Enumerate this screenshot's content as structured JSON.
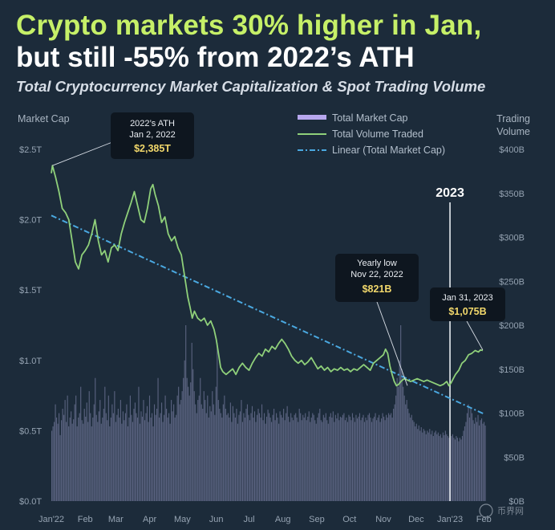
{
  "header": {
    "title_line1": "Crypto markets 30% higher in Jan,",
    "title_line2": "but still -55% from 2022’s ATH",
    "subtitle": "Total Cryptocurrency Market Capitalization & Spot Trading Volume"
  },
  "colors": {
    "background": "#1c2b3a",
    "market_cap_line": "#8fd07a",
    "volume_bars": "#8c8fb8",
    "linear_trend": "#4aa8e0",
    "legend_market_cap_swatch": "#b7a7ee",
    "title_accent": "#c6f068",
    "annotation_value": "#f1d76b"
  },
  "chart_data": {
    "type": "line",
    "left_axis_title": "Market Cap",
    "right_axis_title_line1": "Trading",
    "right_axis_title_line2": "Volume",
    "left_ticks": [
      "$0.0T",
      "$0.5T",
      "$1.0T",
      "$1.5T",
      "$2.0T",
      "$2.5T"
    ],
    "left_tick_values": [
      0,
      0.5,
      1.0,
      1.5,
      2.0,
      2.5
    ],
    "right_ticks": [
      "$0B",
      "$50B",
      "$100B",
      "$150B",
      "$200B",
      "$250B",
      "$300B",
      "$350B",
      "$400B"
    ],
    "right_tick_values": [
      0,
      50,
      100,
      150,
      200,
      250,
      300,
      350,
      400
    ],
    "ylim_left": [
      0,
      2.5
    ],
    "ylim_right": [
      0,
      400
    ],
    "xlim_days": [
      0,
      398
    ],
    "x_ticks": [
      "Jan'22",
      "Feb",
      "Mar",
      "Apr",
      "May",
      "Jun",
      "Jul",
      "Aug",
      "Sep",
      "Oct",
      "Nov",
      "Dec",
      "Jan'23",
      "Feb"
    ],
    "x_tick_days": [
      0,
      31,
      59,
      90,
      120,
      151,
      181,
      212,
      243,
      273,
      304,
      334,
      365,
      396
    ],
    "legend": [
      "Total Market Cap",
      "Total Volume Traded",
      "Linear (Total Market Cap)"
    ],
    "line_series": {
      "name": "Total Market Cap",
      "unit": "T USD",
      "points": [
        [
          0,
          2.33
        ],
        [
          1,
          2.385
        ],
        [
          4,
          2.3
        ],
        [
          7,
          2.2
        ],
        [
          10,
          2.08
        ],
        [
          13,
          2.05
        ],
        [
          16,
          2.0
        ],
        [
          19,
          1.85
        ],
        [
          22,
          1.7
        ],
        [
          25,
          1.65
        ],
        [
          28,
          1.75
        ],
        [
          31,
          1.78
        ],
        [
          34,
          1.82
        ],
        [
          37,
          1.9
        ],
        [
          40,
          2.0
        ],
        [
          43,
          1.85
        ],
        [
          46,
          1.75
        ],
        [
          49,
          1.78
        ],
        [
          52,
          1.7
        ],
        [
          55,
          1.8
        ],
        [
          58,
          1.82
        ],
        [
          61,
          1.78
        ],
        [
          64,
          1.9
        ],
        [
          67,
          1.98
        ],
        [
          70,
          2.05
        ],
        [
          73,
          2.12
        ],
        [
          76,
          2.2
        ],
        [
          79,
          2.1
        ],
        [
          82,
          2.0
        ],
        [
          85,
          1.98
        ],
        [
          88,
          2.08
        ],
        [
          91,
          2.22
        ],
        [
          93,
          2.25
        ],
        [
          95,
          2.18
        ],
        [
          98,
          2.1
        ],
        [
          101,
          1.98
        ],
        [
          104,
          2.02
        ],
        [
          107,
          1.9
        ],
        [
          110,
          1.85
        ],
        [
          113,
          1.88
        ],
        [
          116,
          1.8
        ],
        [
          119,
          1.75
        ],
        [
          121,
          1.65
        ],
        [
          123,
          1.55
        ],
        [
          125,
          1.45
        ],
        [
          127,
          1.38
        ],
        [
          129,
          1.3
        ],
        [
          131,
          1.35
        ],
        [
          134,
          1.3
        ],
        [
          137,
          1.28
        ],
        [
          140,
          1.3
        ],
        [
          143,
          1.25
        ],
        [
          146,
          1.28
        ],
        [
          149,
          1.22
        ],
        [
          151,
          1.15
        ],
        [
          153,
          1.05
        ],
        [
          155,
          0.95
        ],
        [
          157,
          0.92
        ],
        [
          160,
          0.9
        ],
        [
          163,
          0.92
        ],
        [
          166,
          0.94
        ],
        [
          169,
          0.9
        ],
        [
          172,
          0.95
        ],
        [
          175,
          0.98
        ],
        [
          178,
          0.95
        ],
        [
          181,
          0.93
        ],
        [
          184,
          0.98
        ],
        [
          187,
          1.02
        ],
        [
          190,
          1.05
        ],
        [
          193,
          1.03
        ],
        [
          196,
          1.08
        ],
        [
          199,
          1.06
        ],
        [
          202,
          1.1
        ],
        [
          205,
          1.08
        ],
        [
          208,
          1.12
        ],
        [
          211,
          1.15
        ],
        [
          214,
          1.12
        ],
        [
          217,
          1.08
        ],
        [
          220,
          1.03
        ],
        [
          223,
          1.0
        ],
        [
          226,
          0.98
        ],
        [
          229,
          1.0
        ],
        [
          232,
          0.97
        ],
        [
          235,
          0.99
        ],
        [
          238,
          1.02
        ],
        [
          241,
          0.98
        ],
        [
          244,
          0.94
        ],
        [
          247,
          0.96
        ],
        [
          250,
          0.93
        ],
        [
          253,
          0.95
        ],
        [
          256,
          0.92
        ],
        [
          259,
          0.94
        ],
        [
          262,
          0.93
        ],
        [
          265,
          0.95
        ],
        [
          268,
          0.93
        ],
        [
          271,
          0.94
        ],
        [
          274,
          0.92
        ],
        [
          277,
          0.94
        ],
        [
          280,
          0.93
        ],
        [
          283,
          0.95
        ],
        [
          286,
          0.97
        ],
        [
          289,
          0.95
        ],
        [
          292,
          0.93
        ],
        [
          295,
          0.98
        ],
        [
          298,
          1.0
        ],
        [
          301,
          1.02
        ],
        [
          304,
          1.04
        ],
        [
          306,
          1.08
        ],
        [
          308,
          1.05
        ],
        [
          310,
          0.96
        ],
        [
          312,
          0.9
        ],
        [
          314,
          0.85
        ],
        [
          316,
          0.82
        ],
        [
          318,
          0.83
        ],
        [
          320,
          0.85
        ],
        [
          323,
          0.87
        ],
        [
          326,
          0.86
        ],
        [
          329,
          0.85
        ],
        [
          332,
          0.86
        ],
        [
          335,
          0.87
        ],
        [
          338,
          0.86
        ],
        [
          341,
          0.85
        ],
        [
          344,
          0.86
        ],
        [
          347,
          0.85
        ],
        [
          350,
          0.84
        ],
        [
          353,
          0.83
        ],
        [
          356,
          0.82
        ],
        [
          359,
          0.83
        ],
        [
          362,
          0.85
        ],
        [
          364,
          0.82
        ],
        [
          366,
          0.84
        ],
        [
          368,
          0.87
        ],
        [
          370,
          0.9
        ],
        [
          373,
          0.93
        ],
        [
          376,
          0.98
        ],
        [
          379,
          1.0
        ],
        [
          382,
          1.04
        ],
        [
          385,
          1.05
        ],
        [
          388,
          1.07
        ],
        [
          391,
          1.06
        ],
        [
          393,
          1.075
        ],
        [
          395,
          1.07
        ]
      ]
    },
    "volume_series": {
      "name": "Total Volume Traded",
      "unit": "B USD",
      "note_values": "daily bar heights estimated",
      "values": [
        80,
        85,
        90,
        110,
        95,
        88,
        100,
        75,
        92,
        105,
        98,
        115,
        90,
        120,
        85,
        95,
        102,
        88,
        93,
        110,
        120,
        85,
        95,
        100,
        130,
        92,
        88,
        105,
        96,
        112,
        90,
        125,
        100,
        85,
        95,
        110,
        140,
        98,
        90,
        102,
        115,
        88,
        95,
        105,
        130,
        100,
        92,
        120,
        85,
        95,
        110,
        100,
        125,
        90,
        98,
        105,
        95,
        115,
        88,
        102,
        92,
        100,
        110,
        85,
        95,
        120,
        98,
        90,
        105,
        112,
        100,
        95,
        130,
        88,
        102,
        96,
        115,
        92,
        100,
        108,
        90,
        120,
        95,
        100,
        85,
        110,
        98,
        105,
        140,
        95,
        100,
        112,
        90,
        98,
        120,
        105,
        95,
        100,
        88,
        115,
        102,
        110,
        95,
        98,
        120,
        130,
        110,
        115,
        125,
        140,
        160,
        200,
        140,
        130,
        120,
        135,
        180,
        150,
        125,
        110,
        100,
        115,
        120,
        140,
        110,
        105,
        125,
        115,
        100,
        120,
        95,
        108,
        102,
        125,
        110,
        98,
        130,
        180,
        115,
        105,
        100,
        95,
        110,
        120,
        105,
        98,
        100,
        95,
        112,
        90,
        108,
        100,
        95,
        105,
        88,
        98,
        102,
        115,
        90,
        100,
        95,
        105,
        110,
        98,
        92,
        100,
        108,
        95,
        102,
        90,
        98,
        105,
        100,
        95,
        110,
        92,
        100,
        88,
        96,
        104,
        100,
        95,
        90,
        98,
        105,
        92,
        100,
        95,
        88,
        102,
        98,
        95,
        105,
        92,
        100,
        108,
        96,
        90,
        100,
        95,
        92,
        98,
        100,
        95,
        90,
        105,
        100,
        92,
        98,
        95,
        100,
        92,
        96,
        102,
        90,
        95,
        100,
        98,
        92,
        88,
        95,
        100,
        105,
        92,
        90,
        98,
        95,
        100,
        92,
        88,
        96,
        100,
        95,
        102,
        90,
        98,
        94,
        100,
        92,
        96,
        95,
        98,
        100,
        92,
        95,
        90,
        98,
        96,
        92,
        100,
        95,
        90,
        98,
        94,
        96,
        100,
        92,
        95,
        98,
        90,
        95,
        92,
        98,
        100,
        95,
        90,
        94,
        96,
        100,
        92,
        95,
        98,
        90,
        94,
        100,
        96,
        92,
        98,
        95,
        100,
        98,
        100,
        95,
        105,
        110,
        120,
        140,
        130,
        160,
        200,
        150,
        130,
        120,
        110,
        115,
        105,
        100,
        95,
        98,
        92,
        90,
        85,
        88,
        82,
        86,
        80,
        84,
        78,
        82,
        80,
        76,
        80,
        78,
        82,
        76,
        80,
        74,
        78,
        80,
        76,
        78,
        74,
        76,
        72,
        78,
        75,
        80,
        76,
        74,
        72,
        70,
        74,
        76,
        72,
        70,
        74,
        72,
        68,
        72,
        70,
        74,
        80,
        85,
        90,
        100,
        110,
        95,
        105,
        100,
        92,
        88,
        95,
        90,
        98,
        86,
        92,
        94,
        88,
        90,
        86
      ]
    },
    "linear_series": {
      "name": "Linear (Total Market Cap)",
      "points": [
        [
          0,
          2.03
        ],
        [
          396,
          0.62
        ]
      ]
    },
    "annotations": [
      {
        "label_line1": "2022’s ATH",
        "label_line2": "Jan 2, 2022",
        "value": "$2,385T",
        "day": 1,
        "cap": 2.385
      },
      {
        "label_line1": "Yearly low",
        "label_line2": "Nov 22, 2022",
        "value": "$821B",
        "day": 326,
        "cap": 0.821
      },
      {
        "label_line1": "Jan 31, 2023",
        "value": "$1,075B",
        "day": 395,
        "cap": 1.075
      }
    ],
    "year_marker": {
      "label": "2023",
      "day": 365
    }
  },
  "watermark": "币界网"
}
